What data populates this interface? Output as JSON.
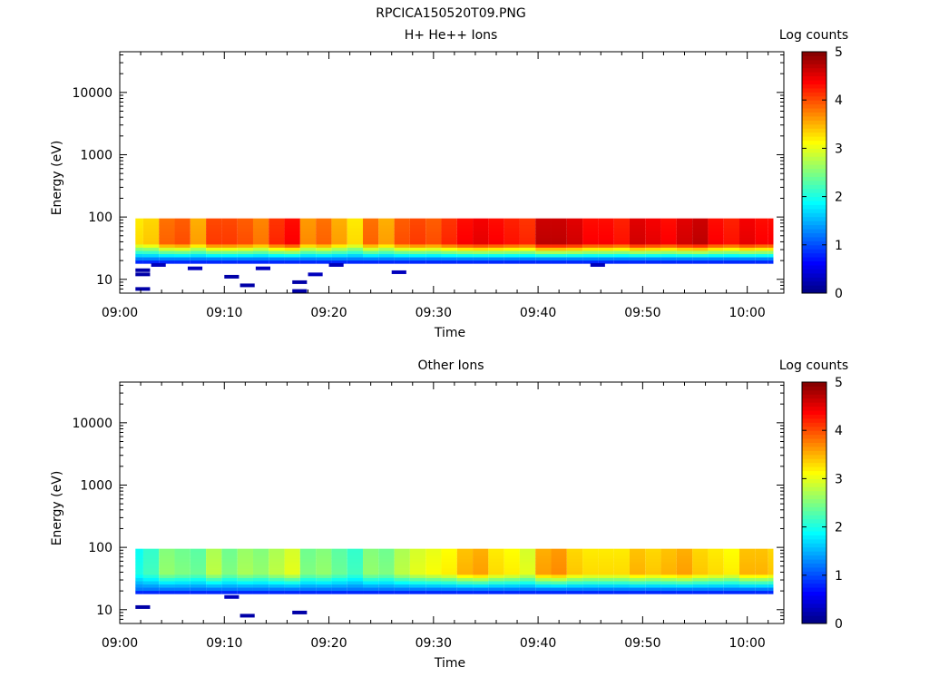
{
  "figure_title": "RPCICA150520T09.PNG",
  "chart_data": [
    {
      "type": "heatmap",
      "title": "H+ He++ Ions",
      "xlabel": "Time",
      "ylabel": "Energy (eV)",
      "x_ticks": [
        "09:00",
        "09:10",
        "09:20",
        "09:30",
        "09:40",
        "09:50",
        "10:00"
      ],
      "y_ticks": [
        "10",
        "100",
        "1000",
        "10000"
      ],
      "y_scale": "log",
      "x_range_minutes": [
        0,
        63.5
      ],
      "y_range_eV": [
        6,
        45000
      ],
      "colorbar": {
        "label": "Log counts",
        "ticks": [
          "0",
          "1",
          "2",
          "3",
          "4",
          "5"
        ],
        "range": [
          0,
          5
        ]
      },
      "band_energy_eV": [
        18,
        95
      ],
      "low_energy_edge_eV": 20,
      "time_columns_min": [
        1.5,
        3,
        4.5,
        6,
        7.5,
        9,
        10.5,
        12,
        13.5,
        15,
        16.5,
        18,
        19.5,
        21,
        22.5,
        24,
        25.5,
        27,
        28.5,
        30,
        31.5,
        33,
        34.5,
        36,
        37.5,
        39,
        40.5,
        42,
        43.5,
        45,
        46.5,
        48,
        49.5,
        51,
        52.5,
        54,
        55.5,
        57,
        58.5,
        60,
        61.5,
        62.5
      ],
      "peak_log_counts": [
        3.3,
        3.4,
        3.9,
        4.0,
        3.6,
        4.1,
        4.1,
        4.0,
        3.8,
        4.2,
        4.4,
        3.7,
        3.9,
        3.6,
        3.3,
        3.9,
        3.6,
        4.0,
        4.1,
        4.0,
        4.2,
        4.4,
        4.5,
        4.4,
        4.3,
        4.2,
        4.7,
        4.7,
        4.6,
        4.4,
        4.4,
        4.3,
        4.6,
        4.5,
        4.4,
        4.6,
        4.7,
        4.4,
        4.3,
        4.5,
        4.4,
        4.4
      ],
      "sparse_low_energy_points": [
        {
          "t": 1.5,
          "e": 14,
          "v": 0.2
        },
        {
          "t": 1.5,
          "e": 12,
          "v": 0.2
        },
        {
          "t": 1.5,
          "e": 7,
          "v": 0.2
        },
        {
          "t": 3,
          "e": 17,
          "v": 0.3
        },
        {
          "t": 6.5,
          "e": 15,
          "v": 0.3
        },
        {
          "t": 10,
          "e": 11,
          "v": 0.2
        },
        {
          "t": 11.5,
          "e": 8,
          "v": 0.2
        },
        {
          "t": 13,
          "e": 15,
          "v": 0.3
        },
        {
          "t": 16.5,
          "e": 9,
          "v": 0.2
        },
        {
          "t": 16.5,
          "e": 6.5,
          "v": 0.2
        },
        {
          "t": 18,
          "e": 12,
          "v": 0.3
        },
        {
          "t": 20,
          "e": 17,
          "v": 0.3
        },
        {
          "t": 26,
          "e": 13,
          "v": 0.3
        },
        {
          "t": 45,
          "e": 17,
          "v": 0.3
        }
      ]
    },
    {
      "type": "heatmap",
      "title": "Other Ions",
      "xlabel": "Time",
      "ylabel": "Energy (eV)",
      "x_ticks": [
        "09:00",
        "09:10",
        "09:20",
        "09:30",
        "09:40",
        "09:50",
        "10:00"
      ],
      "y_ticks": [
        "10",
        "100",
        "1000",
        "10000"
      ],
      "y_scale": "log",
      "x_range_minutes": [
        0,
        63.5
      ],
      "y_range_eV": [
        6,
        45000
      ],
      "colorbar": {
        "label": "Log counts",
        "ticks": [
          "0",
          "1",
          "2",
          "3",
          "4",
          "5"
        ],
        "range": [
          0,
          5
        ]
      },
      "band_energy_eV": [
        18,
        95
      ],
      "low_energy_edge_eV": 20,
      "time_columns_min": [
        1.5,
        3,
        4.5,
        6,
        7.5,
        9,
        10.5,
        12,
        13.5,
        15,
        16.5,
        18,
        19.5,
        21,
        22.5,
        24,
        25.5,
        27,
        28.5,
        30,
        31.5,
        33,
        34.5,
        36,
        37.5,
        39,
        40.5,
        42,
        43.5,
        45,
        46.5,
        48,
        49.5,
        51,
        52.5,
        54,
        55.5,
        57,
        58.5,
        60,
        61.5,
        62.5
      ],
      "peak_log_counts": [
        2.0,
        2.2,
        2.6,
        2.5,
        2.4,
        2.8,
        2.5,
        2.7,
        2.6,
        2.8,
        3.0,
        2.5,
        2.6,
        2.4,
        2.2,
        2.6,
        2.5,
        2.8,
        3.0,
        3.1,
        3.2,
        3.5,
        3.6,
        3.3,
        3.2,
        3.0,
        3.6,
        3.7,
        3.4,
        3.3,
        3.3,
        3.3,
        3.5,
        3.4,
        3.5,
        3.6,
        3.4,
        3.3,
        3.2,
        3.5,
        3.5,
        3.4
      ],
      "sparse_low_energy_points": [
        {
          "t": 1.5,
          "e": 11,
          "v": 0.2
        },
        {
          "t": 10,
          "e": 16,
          "v": 0.3
        },
        {
          "t": 11.5,
          "e": 8,
          "v": 0.2
        },
        {
          "t": 16.5,
          "e": 9,
          "v": 0.2
        }
      ]
    }
  ]
}
